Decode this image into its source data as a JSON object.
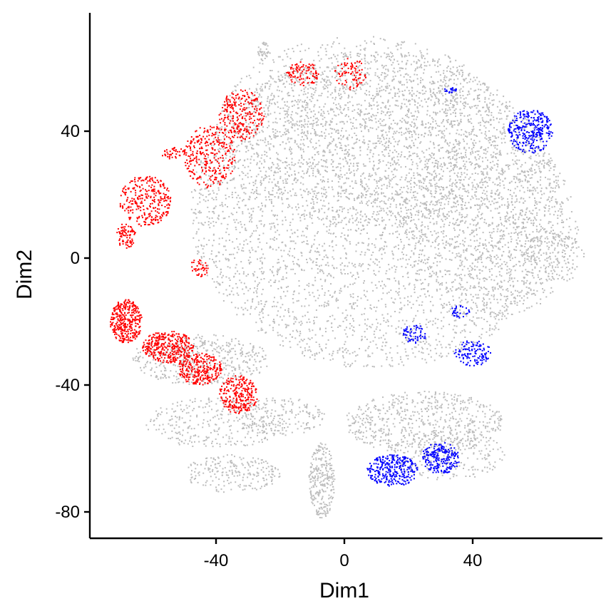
{
  "chart_data": {
    "type": "scatter",
    "title": "",
    "xlabel": "Dim1",
    "ylabel": "Dim2",
    "xlim": [
      -80,
      82
    ],
    "ylim": [
      -88,
      78
    ],
    "x_ticks": [
      -40,
      0,
      40
    ],
    "y_ticks": [
      40,
      0,
      -40,
      -80
    ],
    "x_tick_labels": [
      "-40",
      "0",
      "40"
    ],
    "y_tick_labels": [
      "40",
      "0",
      "-40",
      "-80"
    ],
    "grid": false,
    "legend": "none",
    "colors": {
      "background": "#bdbdbd",
      "red_group": "#ff0000",
      "blue_group": "#0000ff"
    },
    "series": [
      {
        "color": "#bdbdbd",
        "regions": [
          {
            "cx": 10,
            "cy": 15,
            "rx": 58,
            "ry": 50,
            "n": 4200
          },
          {
            "cx": 5,
            "cy": 40,
            "rx": 45,
            "ry": 30,
            "n": 1400
          },
          {
            "cx": 45,
            "cy": 10,
            "rx": 28,
            "ry": 30,
            "n": 900
          },
          {
            "cx": 65,
            "cy": 0,
            "rx": 10,
            "ry": 8,
            "n": 150
          },
          {
            "cx": -45,
            "cy": -32,
            "rx": 22,
            "ry": 8,
            "n": 450
          },
          {
            "cx": -40,
            "cy": -52,
            "rx": 22,
            "ry": 8,
            "n": 300
          },
          {
            "cx": -20,
            "cy": -50,
            "rx": 14,
            "ry": 6,
            "n": 180
          },
          {
            "cx": -35,
            "cy": -68,
            "rx": 15,
            "ry": 6,
            "n": 220
          },
          {
            "cx": -7,
            "cy": -70,
            "rx": 4,
            "ry": 12,
            "n": 260
          },
          {
            "cx": 25,
            "cy": -52,
            "rx": 25,
            "ry": 10,
            "n": 600
          },
          {
            "cx": 32,
            "cy": -62,
            "rx": 18,
            "ry": 8,
            "n": 250
          },
          {
            "cx": -25,
            "cy": 65,
            "rx": 2,
            "ry": 3,
            "n": 40
          },
          {
            "cx": 33,
            "cy": 50,
            "rx": 5,
            "ry": 5,
            "n": 40
          }
        ]
      },
      {
        "color": "#ff0000",
        "regions": [
          {
            "cx": -68,
            "cy": -20,
            "rx": 5,
            "ry": 7,
            "n": 350
          },
          {
            "cx": -55,
            "cy": -28,
            "rx": 8,
            "ry": 5,
            "n": 350
          },
          {
            "cx": -45,
            "cy": -35,
            "rx": 7,
            "ry": 5,
            "n": 280
          },
          {
            "cx": -33,
            "cy": -43,
            "rx": 6,
            "ry": 6,
            "n": 250
          },
          {
            "cx": -62,
            "cy": 18,
            "rx": 8,
            "ry": 8,
            "n": 300
          },
          {
            "cx": -68,
            "cy": 7,
            "rx": 3,
            "ry": 4,
            "n": 80
          },
          {
            "cx": -42,
            "cy": 32,
            "rx": 8,
            "ry": 10,
            "n": 300
          },
          {
            "cx": -32,
            "cy": 45,
            "rx": 7,
            "ry": 8,
            "n": 250
          },
          {
            "cx": -13,
            "cy": 58,
            "rx": 5,
            "ry": 4,
            "n": 100
          },
          {
            "cx": 2,
            "cy": 58,
            "rx": 5,
            "ry": 5,
            "n": 80
          },
          {
            "cx": -45,
            "cy": -3,
            "rx": 3,
            "ry": 3,
            "n": 40
          },
          {
            "cx": -53,
            "cy": 33,
            "rx": 4,
            "ry": 2,
            "n": 40
          }
        ]
      },
      {
        "color": "#0000ff",
        "regions": [
          {
            "cx": 58,
            "cy": 40,
            "rx": 7,
            "ry": 7,
            "n": 300
          },
          {
            "cx": 15,
            "cy": -67,
            "rx": 8,
            "ry": 5,
            "n": 300
          },
          {
            "cx": 30,
            "cy": -63,
            "rx": 6,
            "ry": 5,
            "n": 220
          },
          {
            "cx": 40,
            "cy": -30,
            "rx": 6,
            "ry": 4,
            "n": 120
          },
          {
            "cx": 22,
            "cy": -24,
            "rx": 4,
            "ry": 3,
            "n": 60
          },
          {
            "cx": 36,
            "cy": -17,
            "rx": 3,
            "ry": 2,
            "n": 30
          },
          {
            "cx": 33,
            "cy": 53,
            "rx": 2,
            "ry": 1,
            "n": 20
          }
        ]
      }
    ]
  }
}
